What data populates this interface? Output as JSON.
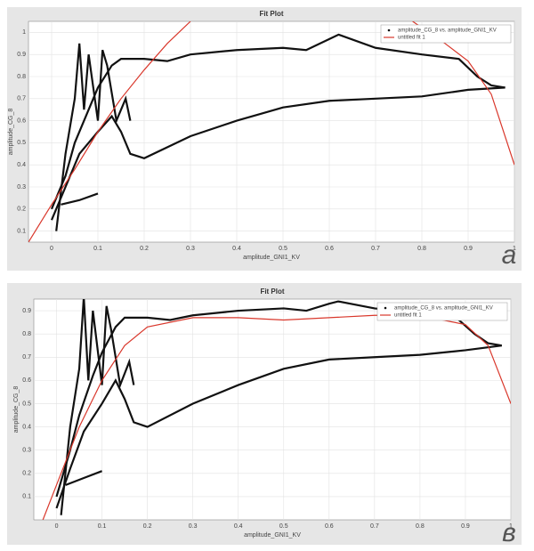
{
  "chart_data": [
    {
      "type": "line",
      "title": "Fit Plot",
      "x_label": "amplitude_GNI1_KV",
      "y_label": "amplitude_CG_8",
      "panel_label": "a",
      "xlim": [
        -0.05,
        1.0
      ],
      "ylim": [
        0.05,
        1.05
      ],
      "xticks": [
        0,
        0.1,
        0.2,
        0.3,
        0.4,
        0.5,
        0.6,
        0.7,
        0.8,
        0.9,
        1
      ],
      "yticks": [
        0.1,
        0.2,
        0.3,
        0.4,
        0.5,
        0.6,
        0.7,
        0.8,
        0.9,
        1
      ],
      "grid": true,
      "legend": "top-right",
      "series": [
        {
          "name": "amplitude_CG_8 vs. amplitude_GNI1_KV",
          "color": "#111111",
          "x": [
            0,
            0.03,
            0.05,
            0.08,
            0.1,
            0.13,
            0.15,
            0.2,
            0.25,
            0.3,
            0.4,
            0.5,
            0.55,
            0.6,
            0.62,
            0.7,
            0.8,
            0.88,
            0.92,
            0.95,
            0.98,
            null,
            0,
            0.03,
            0.06,
            0.1,
            0.13,
            0.15,
            0.17,
            0.2,
            0.3,
            0.4,
            0.5,
            0.6,
            0.7,
            0.8,
            0.9,
            0.98,
            null,
            0.01,
            0.03,
            0.05,
            0.06,
            0.07,
            0.08,
            0.1,
            0.11,
            0.12,
            0.14,
            0.16,
            0.17,
            null,
            0.02,
            0.06,
            0.1
          ],
          "y": [
            0.2,
            0.35,
            0.5,
            0.65,
            0.75,
            0.85,
            0.88,
            0.88,
            0.87,
            0.9,
            0.92,
            0.93,
            0.92,
            0.97,
            0.99,
            0.93,
            0.9,
            0.88,
            0.8,
            0.76,
            0.75,
            null,
            0.15,
            0.3,
            0.45,
            0.55,
            0.62,
            0.55,
            0.45,
            0.43,
            0.53,
            0.6,
            0.66,
            0.69,
            0.7,
            0.71,
            0.74,
            0.75,
            null,
            0.1,
            0.45,
            0.7,
            0.95,
            0.65,
            0.9,
            0.6,
            0.92,
            0.85,
            0.6,
            0.7,
            0.6,
            null,
            0.22,
            0.24,
            0.27
          ]
        },
        {
          "name": "untitled fit 1",
          "color": "#d9372b",
          "x": [
            -0.05,
            0,
            0.05,
            0.1,
            0.15,
            0.2,
            0.25,
            0.3,
            null,
            0.78,
            0.85,
            0.9,
            0.95,
            1.0
          ],
          "y": [
            0.05,
            0.22,
            0.38,
            0.55,
            0.7,
            0.83,
            0.95,
            1.05,
            null,
            1.05,
            0.95,
            0.87,
            0.72,
            0.4
          ]
        }
      ]
    },
    {
      "type": "line",
      "title": "Fit Plot",
      "x_label": "amplitude_GNI1_KV",
      "y_label": "amplitude_CG_8",
      "panel_label": "в",
      "xlim": [
        -0.05,
        1.0
      ],
      "ylim": [
        0,
        0.95
      ],
      "xticks": [
        0,
        0.1,
        0.2,
        0.3,
        0.4,
        0.5,
        0.6,
        0.7,
        0.8,
        0.9,
        1
      ],
      "yticks": [
        0.1,
        0.2,
        0.3,
        0.4,
        0.5,
        0.6,
        0.7,
        0.8,
        0.9
      ],
      "grid": true,
      "legend": "top-right",
      "series": [
        {
          "name": "amplitude_CG_8 vs. amplitude_GNI1_KV",
          "color": "#111111",
          "x": [
            0,
            0.03,
            0.05,
            0.08,
            0.1,
            0.13,
            0.15,
            0.2,
            0.25,
            0.3,
            0.4,
            0.5,
            0.55,
            0.6,
            0.62,
            0.7,
            0.8,
            0.88,
            0.92,
            0.95,
            0.98,
            null,
            0,
            0.03,
            0.06,
            0.1,
            0.13,
            0.15,
            0.17,
            0.2,
            0.3,
            0.4,
            0.5,
            0.6,
            0.7,
            0.8,
            0.9,
            0.98,
            null,
            0.01,
            0.03,
            0.05,
            0.06,
            0.07,
            0.08,
            0.1,
            0.11,
            0.12,
            0.14,
            0.16,
            0.17,
            null,
            0.02,
            0.06,
            0.1
          ],
          "y": [
            0.1,
            0.3,
            0.45,
            0.62,
            0.72,
            0.83,
            0.87,
            0.87,
            0.86,
            0.88,
            0.9,
            0.91,
            0.9,
            0.93,
            0.94,
            0.91,
            0.89,
            0.87,
            0.8,
            0.76,
            0.75,
            null,
            0.05,
            0.22,
            0.38,
            0.5,
            0.6,
            0.52,
            0.42,
            0.4,
            0.5,
            0.58,
            0.65,
            0.69,
            0.7,
            0.71,
            0.73,
            0.75,
            null,
            0.02,
            0.4,
            0.65,
            0.96,
            0.6,
            0.9,
            0.58,
            0.92,
            0.82,
            0.58,
            0.68,
            0.58,
            null,
            0.15,
            0.18,
            0.21
          ]
        },
        {
          "name": "untitled fit 1",
          "color": "#d9372b",
          "x": [
            -0.03,
            0,
            0.05,
            0.1,
            0.15,
            0.2,
            0.3,
            0.4,
            0.5,
            0.6,
            0.7,
            0.8,
            0.9,
            0.95,
            1.0
          ],
          "y": [
            0.0,
            0.15,
            0.4,
            0.6,
            0.75,
            0.83,
            0.87,
            0.87,
            0.86,
            0.87,
            0.88,
            0.88,
            0.84,
            0.75,
            0.5
          ]
        }
      ]
    }
  ]
}
